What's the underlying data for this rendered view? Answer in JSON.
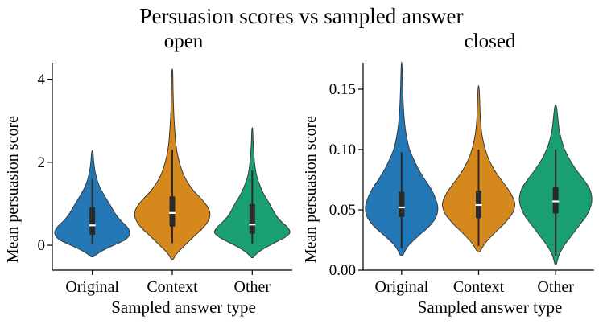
{
  "title": "Persuasion scores vs sampled answer",
  "chart_data": [
    {
      "type": "violin",
      "title": "open",
      "xlabel": "Sampled answer type",
      "ylabel": "Mean persuasion score",
      "categories": [
        "Original",
        "Context",
        "Other"
      ],
      "ylim": [
        -0.6,
        4.4
      ],
      "grid": false,
      "yticks": [
        {
          "value": 0,
          "label": "0"
        },
        {
          "value": 2,
          "label": "2"
        },
        {
          "value": 4,
          "label": "4"
        }
      ],
      "violins": [
        {
          "category": "Original",
          "color": "#2277b4",
          "median": 0.48,
          "q1": 0.25,
          "q3": 0.92,
          "whisker_low": 0.02,
          "whisker_high": 1.6,
          "min": -0.28,
          "max": 2.25,
          "profile": [
            [
              -0.28,
              0.03
            ],
            [
              -0.18,
              0.18
            ],
            [
              -0.08,
              0.38
            ],
            [
              0.02,
              0.62
            ],
            [
              0.12,
              0.85
            ],
            [
              0.22,
              0.97
            ],
            [
              0.32,
              1.0
            ],
            [
              0.45,
              0.92
            ],
            [
              0.6,
              0.75
            ],
            [
              0.75,
              0.62
            ],
            [
              0.9,
              0.52
            ],
            [
              1.05,
              0.42
            ],
            [
              1.2,
              0.32
            ],
            [
              1.4,
              0.2
            ],
            [
              1.6,
              0.12
            ],
            [
              1.8,
              0.07
            ],
            [
              2.0,
              0.04
            ],
            [
              2.25,
              0.015
            ]
          ]
        },
        {
          "category": "Context",
          "color": "#d5891c",
          "median": 0.78,
          "q1": 0.45,
          "q3": 1.18,
          "whisker_low": 0.05,
          "whisker_high": 2.3,
          "min": -0.35,
          "max": 4.2,
          "profile": [
            [
              -0.35,
              0.02
            ],
            [
              -0.2,
              0.12
            ],
            [
              -0.05,
              0.28
            ],
            [
              0.1,
              0.45
            ],
            [
              0.25,
              0.62
            ],
            [
              0.4,
              0.8
            ],
            [
              0.55,
              0.93
            ],
            [
              0.7,
              1.0
            ],
            [
              0.85,
              0.98
            ],
            [
              1.0,
              0.88
            ],
            [
              1.15,
              0.74
            ],
            [
              1.3,
              0.58
            ],
            [
              1.5,
              0.42
            ],
            [
              1.7,
              0.3
            ],
            [
              1.9,
              0.22
            ],
            [
              2.1,
              0.16
            ],
            [
              2.4,
              0.1
            ],
            [
              2.7,
              0.07
            ],
            [
              3.0,
              0.05
            ],
            [
              3.4,
              0.03
            ],
            [
              3.8,
              0.02
            ],
            [
              4.2,
              0.01
            ]
          ]
        },
        {
          "category": "Other",
          "color": "#1a9e74",
          "median": 0.5,
          "q1": 0.28,
          "q3": 1.0,
          "whisker_low": 0.03,
          "whisker_high": 1.8,
          "min": -0.3,
          "max": 2.8,
          "profile": [
            [
              -0.3,
              0.02
            ],
            [
              -0.18,
              0.15
            ],
            [
              -0.06,
              0.35
            ],
            [
              0.06,
              0.6
            ],
            [
              0.18,
              0.85
            ],
            [
              0.3,
              1.0
            ],
            [
              0.42,
              0.95
            ],
            [
              0.55,
              0.8
            ],
            [
              0.7,
              0.65
            ],
            [
              0.85,
              0.55
            ],
            [
              1.0,
              0.46
            ],
            [
              1.15,
              0.36
            ],
            [
              1.3,
              0.27
            ],
            [
              1.5,
              0.18
            ],
            [
              1.7,
              0.11
            ],
            [
              2.0,
              0.06
            ],
            [
              2.3,
              0.035
            ],
            [
              2.55,
              0.02
            ],
            [
              2.8,
              0.01
            ]
          ]
        }
      ]
    },
    {
      "type": "violin",
      "title": "closed",
      "xlabel": "Sampled answer type",
      "ylabel": "Mean persuasion score",
      "categories": [
        "Original",
        "Context",
        "Other"
      ],
      "ylim": [
        0,
        0.172
      ],
      "grid": false,
      "yticks": [
        {
          "value": 0.0,
          "label": "0.00"
        },
        {
          "value": 0.05,
          "label": "0.05"
        },
        {
          "value": 0.1,
          "label": "0.10"
        },
        {
          "value": 0.15,
          "label": "0.15"
        }
      ],
      "violins": [
        {
          "category": "Original",
          "color": "#2277b4",
          "median": 0.052,
          "q1": 0.044,
          "q3": 0.065,
          "whisker_low": 0.018,
          "whisker_high": 0.098,
          "min": 0.012,
          "max": 0.17,
          "profile": [
            [
              0.012,
              0.03
            ],
            [
              0.02,
              0.18
            ],
            [
              0.028,
              0.45
            ],
            [
              0.036,
              0.75
            ],
            [
              0.044,
              0.95
            ],
            [
              0.052,
              1.0
            ],
            [
              0.06,
              0.93
            ],
            [
              0.068,
              0.8
            ],
            [
              0.076,
              0.62
            ],
            [
              0.084,
              0.46
            ],
            [
              0.092,
              0.33
            ],
            [
              0.1,
              0.22
            ],
            [
              0.11,
              0.14
            ],
            [
              0.12,
              0.09
            ],
            [
              0.135,
              0.05
            ],
            [
              0.15,
              0.03
            ],
            [
              0.17,
              0.01
            ]
          ]
        },
        {
          "category": "Context",
          "color": "#d5891c",
          "median": 0.054,
          "q1": 0.043,
          "q3": 0.066,
          "whisker_low": 0.02,
          "whisker_high": 0.1,
          "min": 0.015,
          "max": 0.15,
          "profile": [
            [
              0.015,
              0.03
            ],
            [
              0.023,
              0.2
            ],
            [
              0.031,
              0.45
            ],
            [
              0.039,
              0.72
            ],
            [
              0.047,
              0.93
            ],
            [
              0.055,
              1.0
            ],
            [
              0.063,
              0.9
            ],
            [
              0.071,
              0.72
            ],
            [
              0.079,
              0.52
            ],
            [
              0.087,
              0.36
            ],
            [
              0.095,
              0.24
            ],
            [
              0.104,
              0.15
            ],
            [
              0.113,
              0.09
            ],
            [
              0.125,
              0.05
            ],
            [
              0.15,
              0.015
            ]
          ]
        },
        {
          "category": "Other",
          "color": "#1a9e74",
          "median": 0.057,
          "q1": 0.047,
          "q3": 0.069,
          "whisker_low": 0.012,
          "whisker_high": 0.1,
          "min": 0.005,
          "max": 0.135,
          "profile": [
            [
              0.005,
              0.02
            ],
            [
              0.013,
              0.1
            ],
            [
              0.021,
              0.25
            ],
            [
              0.029,
              0.45
            ],
            [
              0.037,
              0.65
            ],
            [
              0.045,
              0.85
            ],
            [
              0.053,
              0.97
            ],
            [
              0.06,
              1.0
            ],
            [
              0.068,
              0.93
            ],
            [
              0.076,
              0.75
            ],
            [
              0.084,
              0.55
            ],
            [
              0.092,
              0.38
            ],
            [
              0.1,
              0.25
            ],
            [
              0.108,
              0.16
            ],
            [
              0.118,
              0.09
            ],
            [
              0.135,
              0.025
            ]
          ]
        }
      ]
    }
  ],
  "style": {
    "edge_color": "#3a3a3a",
    "box_color": "#2b2b2b",
    "median_color": "#ffffff",
    "axis_color": "#000000"
  }
}
